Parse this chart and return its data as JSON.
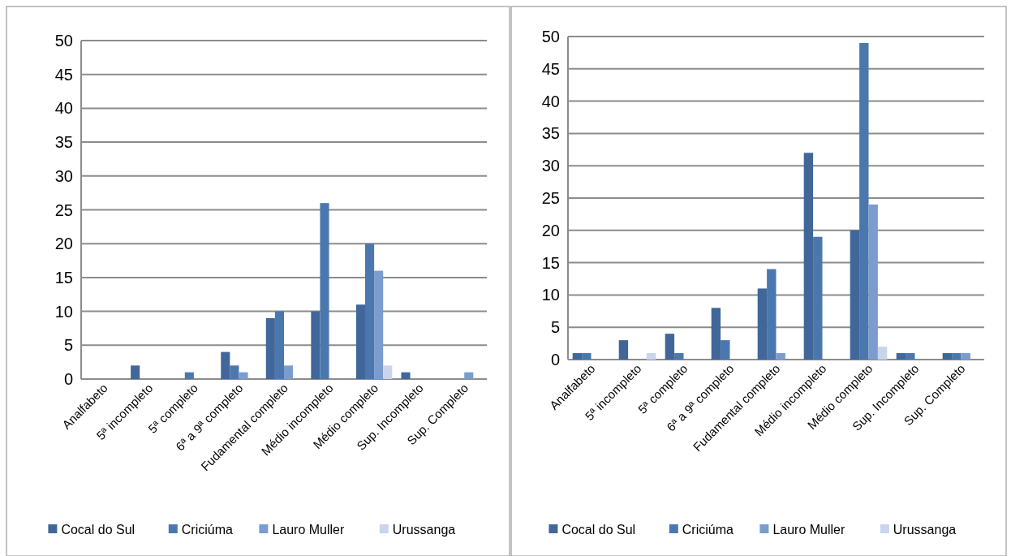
{
  "chart_data": [
    {
      "type": "bar",
      "categories": [
        "Analfabeto",
        "5ª incompleto",
        "5ª completo",
        "6ª a 9ª completo",
        "Fudamental completo",
        "Médio incompleto",
        "Médio completo",
        "Sup. Incompleto",
        "Sup. Completo"
      ],
      "series": [
        {
          "name": "Cocal do Sul",
          "color": "#41679a",
          "values": [
            0,
            2,
            0,
            4,
            9,
            10,
            11,
            1,
            0
          ]
        },
        {
          "name": "Criciúma",
          "color": "#4a78ae",
          "values": [
            0,
            0,
            1,
            2,
            10,
            26,
            20,
            0,
            0
          ]
        },
        {
          "name": "Lauro Muller",
          "color": "#7b9ccf",
          "values": [
            0,
            0,
            0,
            1,
            2,
            0,
            16,
            0,
            1
          ]
        },
        {
          "name": "Urussanga",
          "color": "#c8d5ea",
          "values": [
            0,
            0,
            0,
            0,
            0,
            0,
            2,
            0,
            0
          ]
        }
      ],
      "ylim": [
        0,
        50
      ],
      "yticks": [
        0,
        5,
        10,
        15,
        20,
        25,
        30,
        35,
        40,
        45,
        50
      ],
      "grid": "y",
      "legend": "bottom"
    },
    {
      "type": "bar",
      "categories": [
        "Analfabeto",
        "5ª incompleto",
        "5ª completo",
        "6ª a 9ª completo",
        "Fudamental completo",
        "Médio incompleto",
        "Médio completo",
        "Sup. Incompleto",
        "Sup. Completo"
      ],
      "series": [
        {
          "name": "Cocal do Sul",
          "color": "#41679a",
          "values": [
            1,
            3,
            4,
            8,
            11,
            32,
            20,
            1,
            1
          ]
        },
        {
          "name": "Criciúma",
          "color": "#4a78ae",
          "values": [
            1,
            0,
            1,
            3,
            14,
            19,
            49,
            1,
            1
          ]
        },
        {
          "name": "Lauro Muller",
          "color": "#7b9ccf",
          "values": [
            0,
            0,
            0,
            0,
            1,
            0,
            24,
            0,
            1
          ]
        },
        {
          "name": "Urussanga",
          "color": "#c8d5ea",
          "values": [
            0,
            1,
            0,
            0,
            0,
            0,
            2,
            0,
            0
          ]
        }
      ],
      "ylim": [
        0,
        50
      ],
      "yticks": [
        0,
        5,
        10,
        15,
        20,
        25,
        30,
        35,
        40,
        45,
        50
      ],
      "grid": "y",
      "legend": "bottom"
    }
  ]
}
